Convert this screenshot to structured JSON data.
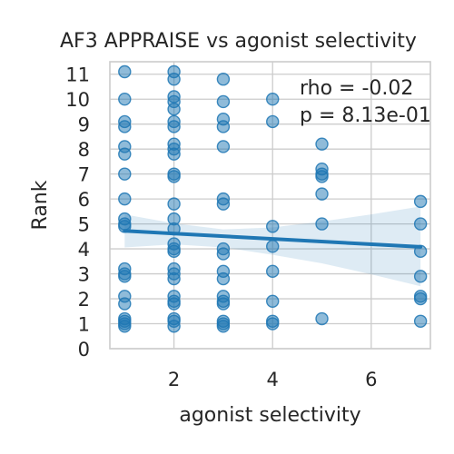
{
  "chart_data": {
    "type": "scatter",
    "title": "AF3 APPRAISE vs agonist selectivity",
    "xlabel": "agonist selectivity",
    "ylabel": "Rank",
    "xlim": [
      0.7,
      7.2
    ],
    "ylim": [
      0,
      11.5
    ],
    "xticks": [
      2,
      4,
      6
    ],
    "yticks": [
      0,
      1,
      2,
      3,
      4,
      5,
      6,
      7,
      8,
      9,
      10,
      11
    ],
    "grid": true,
    "annotation": [
      "rho = -0.02",
      "p = 8.13e-01"
    ],
    "points": [
      {
        "x": 1,
        "y": 11.1
      },
      {
        "x": 1,
        "y": 10.0
      },
      {
        "x": 1,
        "y": 9.1
      },
      {
        "x": 1,
        "y": 8.9
      },
      {
        "x": 1,
        "y": 8.1
      },
      {
        "x": 1,
        "y": 7.8
      },
      {
        "x": 1,
        "y": 7.0
      },
      {
        "x": 1,
        "y": 6.0
      },
      {
        "x": 1,
        "y": 5.2
      },
      {
        "x": 1,
        "y": 5.0
      },
      {
        "x": 1,
        "y": 4.9
      },
      {
        "x": 1,
        "y": 3.2
      },
      {
        "x": 1,
        "y": 3.0
      },
      {
        "x": 1,
        "y": 2.9
      },
      {
        "x": 1,
        "y": 2.1
      },
      {
        "x": 1,
        "y": 1.8
      },
      {
        "x": 1,
        "y": 1.2
      },
      {
        "x": 1,
        "y": 1.1
      },
      {
        "x": 1,
        "y": 1.0
      },
      {
        "x": 1,
        "y": 0.9
      },
      {
        "x": 2,
        "y": 11.1
      },
      {
        "x": 2,
        "y": 10.8
      },
      {
        "x": 2,
        "y": 10.1
      },
      {
        "x": 2,
        "y": 9.9
      },
      {
        "x": 2,
        "y": 9.6
      },
      {
        "x": 2,
        "y": 9.1
      },
      {
        "x": 2,
        "y": 8.9
      },
      {
        "x": 2,
        "y": 8.2
      },
      {
        "x": 2,
        "y": 8.0
      },
      {
        "x": 2,
        "y": 7.8
      },
      {
        "x": 2,
        "y": 7.0
      },
      {
        "x": 2,
        "y": 6.9
      },
      {
        "x": 2,
        "y": 5.8
      },
      {
        "x": 2,
        "y": 5.2
      },
      {
        "x": 2,
        "y": 4.8
      },
      {
        "x": 2,
        "y": 4.2
      },
      {
        "x": 2,
        "y": 4.0
      },
      {
        "x": 2,
        "y": 3.9
      },
      {
        "x": 2,
        "y": 3.2
      },
      {
        "x": 2,
        "y": 3.0
      },
      {
        "x": 2,
        "y": 2.8
      },
      {
        "x": 2,
        "y": 2.1
      },
      {
        "x": 2,
        "y": 1.9
      },
      {
        "x": 2,
        "y": 1.8
      },
      {
        "x": 2,
        "y": 1.2
      },
      {
        "x": 2,
        "y": 1.1
      },
      {
        "x": 2,
        "y": 0.9
      },
      {
        "x": 3,
        "y": 10.8
      },
      {
        "x": 3,
        "y": 9.9
      },
      {
        "x": 3,
        "y": 9.2
      },
      {
        "x": 3,
        "y": 8.9
      },
      {
        "x": 3,
        "y": 8.1
      },
      {
        "x": 3,
        "y": 6.0
      },
      {
        "x": 3,
        "y": 5.8
      },
      {
        "x": 3,
        "y": 4.0
      },
      {
        "x": 3,
        "y": 3.8
      },
      {
        "x": 3,
        "y": 3.1
      },
      {
        "x": 3,
        "y": 2.8
      },
      {
        "x": 3,
        "y": 2.1
      },
      {
        "x": 3,
        "y": 1.9
      },
      {
        "x": 3,
        "y": 1.8
      },
      {
        "x": 3,
        "y": 1.1
      },
      {
        "x": 3,
        "y": 1.0
      },
      {
        "x": 3,
        "y": 0.9
      },
      {
        "x": 4,
        "y": 10.0
      },
      {
        "x": 4,
        "y": 9.1
      },
      {
        "x": 4,
        "y": 4.9
      },
      {
        "x": 4,
        "y": 4.1
      },
      {
        "x": 4,
        "y": 3.1
      },
      {
        "x": 4,
        "y": 1.9
      },
      {
        "x": 4,
        "y": 1.1
      },
      {
        "x": 4,
        "y": 1.0
      },
      {
        "x": 5,
        "y": 8.2
      },
      {
        "x": 5,
        "y": 7.2
      },
      {
        "x": 5,
        "y": 7.0
      },
      {
        "x": 5,
        "y": 6.9
      },
      {
        "x": 5,
        "y": 6.2
      },
      {
        "x": 5,
        "y": 5.0
      },
      {
        "x": 5,
        "y": 1.2
      },
      {
        "x": 7,
        "y": 5.9
      },
      {
        "x": 7,
        "y": 5.0
      },
      {
        "x": 7,
        "y": 3.9
      },
      {
        "x": 7,
        "y": 2.9
      },
      {
        "x": 7,
        "y": 2.1
      },
      {
        "x": 7,
        "y": 2.0
      },
      {
        "x": 7,
        "y": 1.1
      }
    ],
    "fit_line": {
      "x": [
        1,
        7
      ],
      "y": [
        4.72,
        4.08
      ]
    },
    "confidence_band": {
      "x": [
        1,
        2,
        3,
        4,
        5,
        6,
        7
      ],
      "upper": [
        5.38,
        5.02,
        4.78,
        4.86,
        5.1,
        5.38,
        5.7
      ],
      "lower": [
        4.06,
        4.18,
        4.06,
        3.76,
        3.42,
        2.98,
        2.5
      ]
    }
  }
}
